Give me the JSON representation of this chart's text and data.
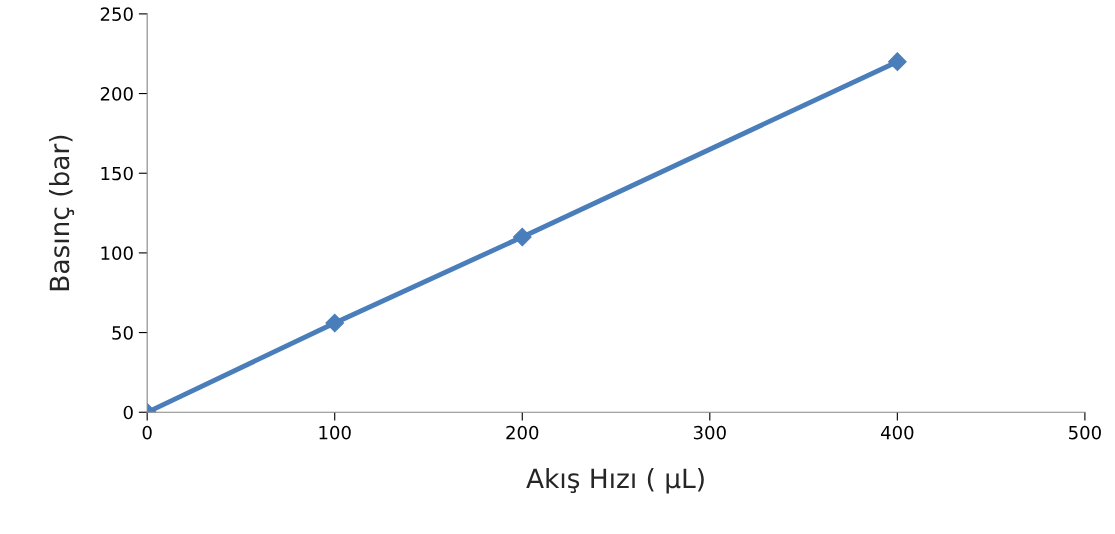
{
  "chart_data": {
    "type": "line",
    "xlabel": "Akış Hızı ( µL)",
    "ylabel": "Basınç (bar)",
    "x": [
      0,
      100,
      200,
      400
    ],
    "series": [
      {
        "color": "#4a7ebb",
        "values": [
          0,
          56,
          110,
          220
        ]
      }
    ],
    "xlim": [
      0,
      500
    ],
    "xticks": [
      0,
      100,
      200,
      300,
      400,
      500
    ],
    "ylim": [
      0,
      250
    ],
    "yticks": [
      0,
      50,
      100,
      150,
      200,
      250
    ],
    "grid": false,
    "marker": "diamond",
    "line_style": "solid"
  }
}
